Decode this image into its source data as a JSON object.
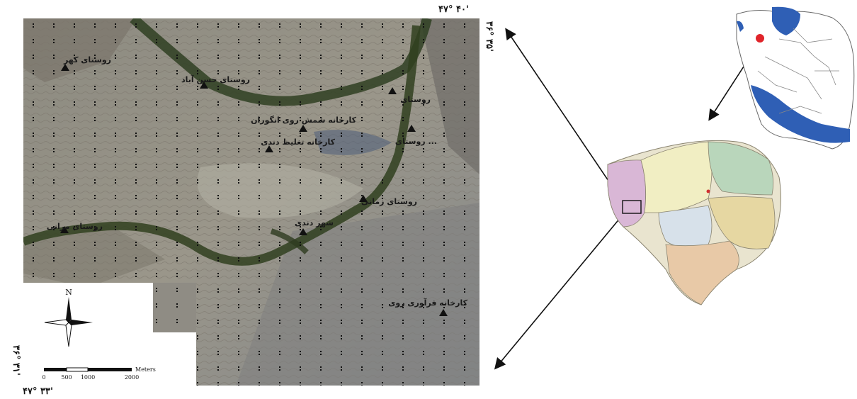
{
  "coordinates": {
    "top_right_lon": "۴۷° ۴۰'",
    "right_lat": "۳۶° ۳۵'",
    "bottom_left_lat": "۳۶° ۳۱'",
    "bottom_left_lon": "۴۷° ۳۳'"
  },
  "places": [
    {
      "label": "روستای کهر"
    },
    {
      "label": "روستای حسن آباد"
    },
    {
      "label": "روستای"
    },
    {
      "label": "کارخانه شمش روی انگوران"
    },
    {
      "label": "روستای ... "
    },
    {
      "label": "کارخانه تغلیظ دندی"
    },
    {
      "label": "روستای زمانی"
    },
    {
      "label": "روستای مرانی"
    },
    {
      "label": "شهر دندی"
    },
    {
      "label": "کارخانه فرآوری روی"
    }
  ],
  "legend": {
    "north_label": "N",
    "scale_unit": "Meters",
    "scale_ticks": [
      "0",
      "500",
      "1000",
      "2000"
    ]
  },
  "colors": {
    "study_area_highlight": "#e0242a",
    "province_highlight_iran": "#e0242a"
  }
}
